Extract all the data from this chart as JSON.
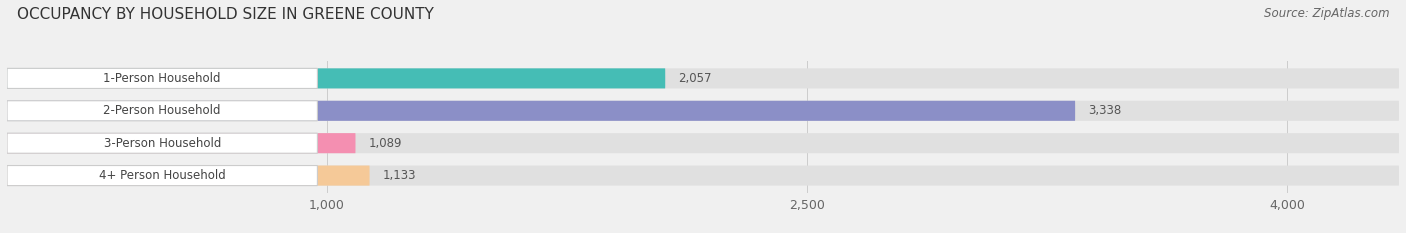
{
  "title": "OCCUPANCY BY HOUSEHOLD SIZE IN GREENE COUNTY",
  "source": "Source: ZipAtlas.com",
  "categories": [
    "1-Person Household",
    "2-Person Household",
    "3-Person Household",
    "4+ Person Household"
  ],
  "values": [
    2057,
    3338,
    1089,
    1133
  ],
  "bar_colors": [
    "#45BDB5",
    "#8B8FC7",
    "#F48FB1",
    "#F5C998"
  ],
  "label_bg_colors": [
    "#ffffff",
    "#ffffff",
    "#ffffff",
    "#ffffff"
  ],
  "value_colors": [
    "#555555",
    "#ffffff",
    "#555555",
    "#555555"
  ],
  "xlim": [
    0,
    4350
  ],
  "xticks": [
    1000,
    2500,
    4000
  ],
  "title_fontsize": 11,
  "source_fontsize": 8.5,
  "bar_label_fontsize": 8.5,
  "value_fontsize": 8.5,
  "background_color": "#f0f0f0",
  "bar_bg_color": "#e0e0e0"
}
